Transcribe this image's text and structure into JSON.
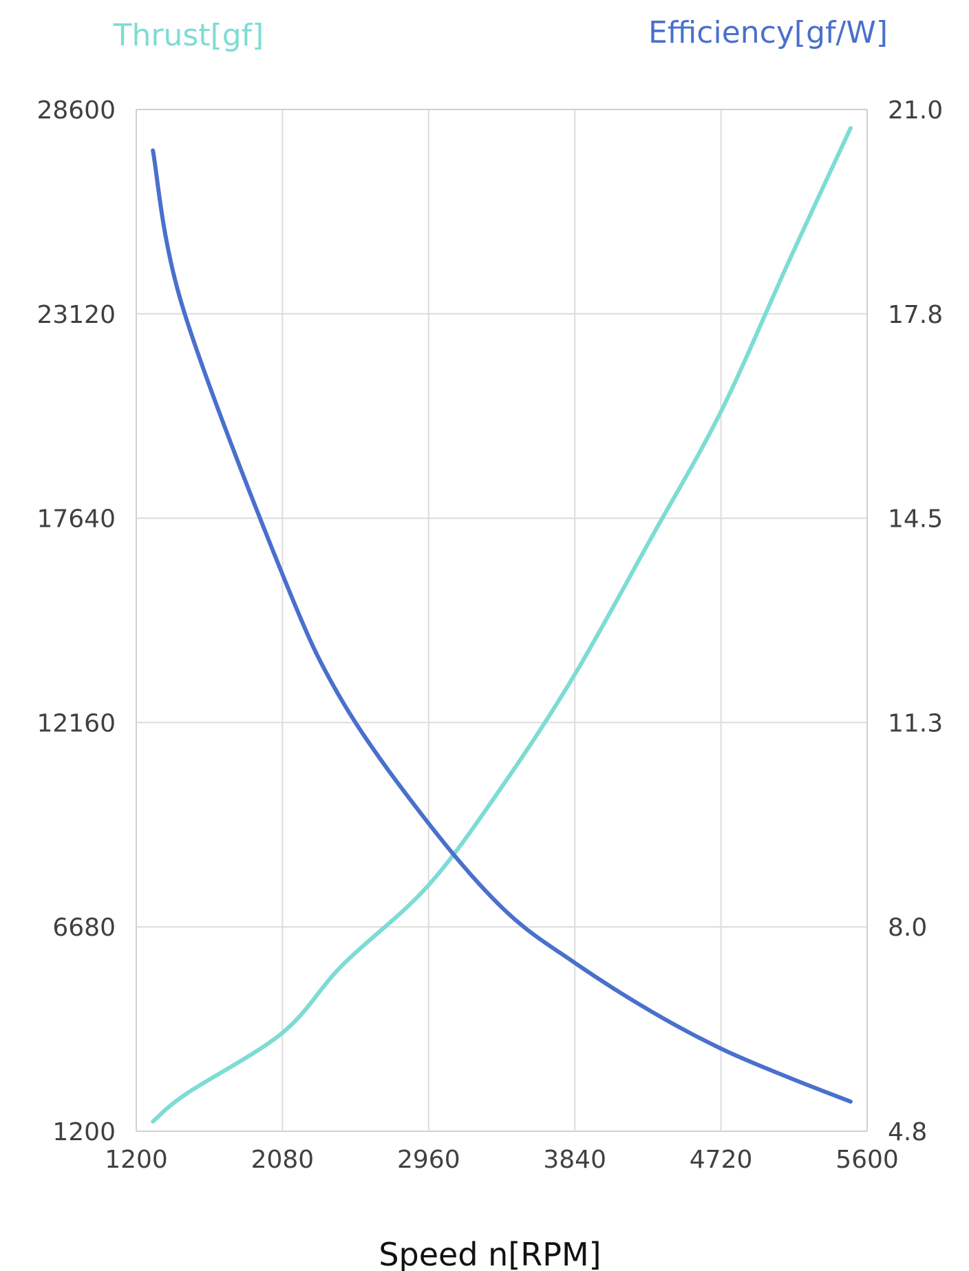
{
  "chart_data": {
    "type": "line",
    "left_title": "Thrust[gf]",
    "right_title": "Efficiency[gf/W]",
    "xlabel": "Speed n[RPM]",
    "xlim": [
      1200,
      5600
    ],
    "ylim_left": [
      1200,
      28600
    ],
    "ylim_right": [
      4.8,
      21.0
    ],
    "x_ticks": [
      "1200",
      "2080",
      "2960",
      "3840",
      "4720",
      "5600"
    ],
    "y_left_ticks": [
      "1200",
      "6680",
      "12160",
      "17640",
      "23120",
      "28600"
    ],
    "y_right_ticks": [
      "4.8",
      "8.0",
      "11.3",
      "14.5",
      "17.8",
      "21.0"
    ],
    "grid": true,
    "colors": {
      "thrust": "#7ddcd4",
      "efficiency": "#4a70cc",
      "grid": "#dcdcdc",
      "axis": "#d0d0d0"
    },
    "series": [
      {
        "name": "Thrust[gf]",
        "axis": "left",
        "x": [
          1300,
          1500,
          2080,
          2440,
          2960,
          3420,
          3840,
          4300,
          4720,
          5130,
          5500
        ],
        "y": [
          1460,
          2200,
          3840,
          5650,
          7800,
          10560,
          13450,
          17110,
          20500,
          24540,
          28100
        ]
      },
      {
        "name": "Efficiency[gf/W]",
        "axis": "right",
        "x": [
          1300,
          1480,
          2080,
          2440,
          2960,
          3420,
          3840,
          4300,
          4720,
          5130,
          5500
        ],
        "y": [
          20.35,
          17.86,
          13.63,
          11.62,
          9.68,
          8.3,
          7.47,
          6.7,
          6.11,
          5.65,
          5.27
        ]
      }
    ]
  }
}
